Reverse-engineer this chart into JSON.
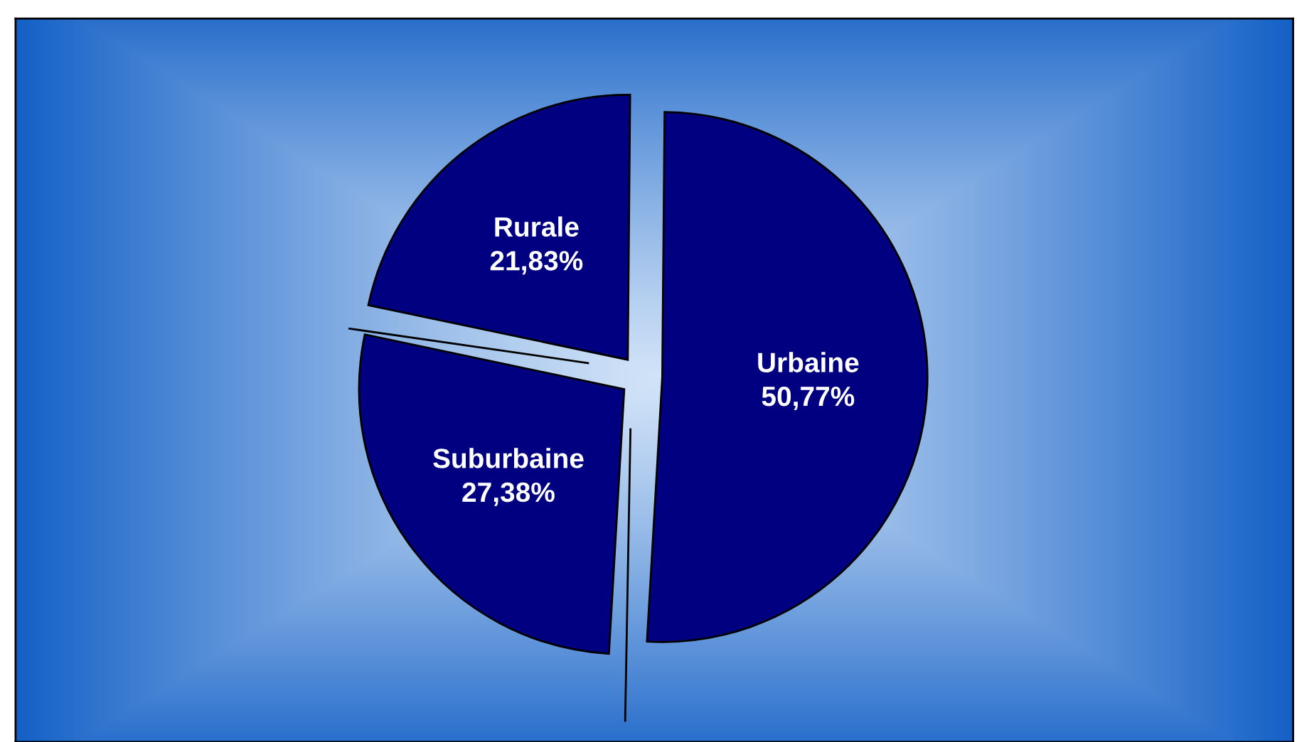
{
  "chart_data": {
    "type": "pie",
    "categories": [
      "Urbaine",
      "Suburbaine",
      "Rurale"
    ],
    "values": [
      50.77,
      27.38,
      21.83
    ],
    "value_labels": [
      "50,77%",
      "27,38%",
      "21,83%"
    ],
    "colors": [
      "#000080",
      "#000080",
      "#000080"
    ],
    "legend": false
  }
}
